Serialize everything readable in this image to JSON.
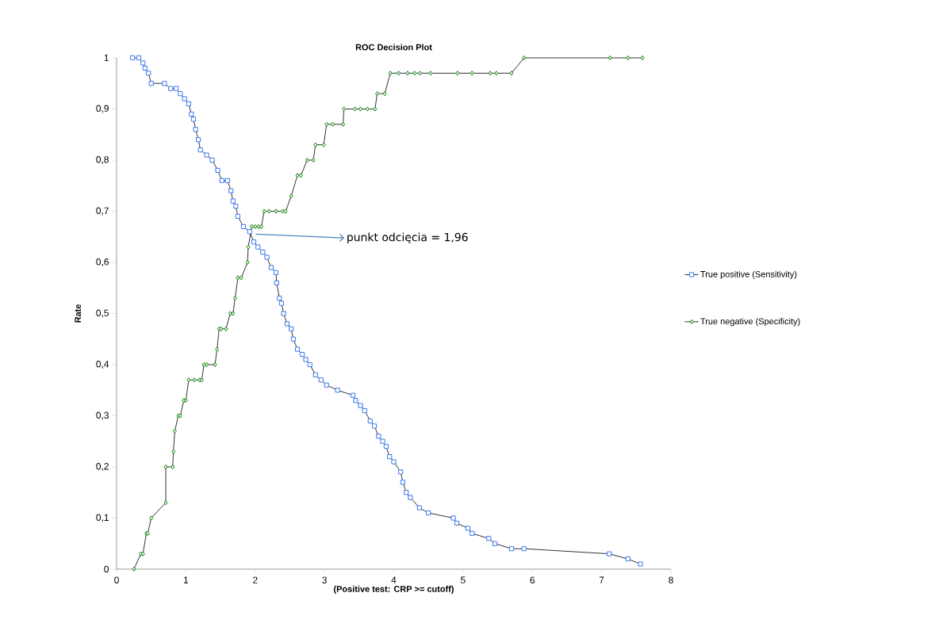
{
  "chart_data": {
    "type": "line",
    "title": "ROC Decision Plot",
    "xlabel": "(Positive test: CRP >= cutoff)",
    "ylabel": "Rate",
    "xlim": [
      0,
      8
    ],
    "ylim": [
      0,
      1
    ],
    "xticks": [
      0,
      1,
      2,
      3,
      4,
      5,
      6,
      7,
      8
    ],
    "yticks": [
      0,
      {
        "value": 0.1,
        "label": "0,1"
      },
      {
        "value": 0.2,
        "label": "0,2"
      },
      {
        "value": 0.3,
        "label": "0,3"
      },
      {
        "value": 0.4,
        "label": "0,4"
      },
      {
        "value": 0.5,
        "label": "0,5"
      },
      {
        "value": 0.6,
        "label": "0,6"
      },
      {
        "value": 0.7,
        "label": "0,7"
      },
      {
        "value": 0.8,
        "label": "0,8"
      },
      {
        "value": 0.9,
        "label": "0,9"
      },
      1
    ],
    "legend": "right",
    "grid": false,
    "annotations": [
      {
        "text": "punkt odcięcia = 1,96",
        "x": 1.96,
        "y": 0.66
      }
    ],
    "series": [
      {
        "name": "True positive (Sensitivity)",
        "color": "#3c78f0",
        "marker": "square",
        "x": [
          0.23,
          0.32,
          0.38,
          0.41,
          0.46,
          0.5,
          0.69,
          0.78,
          0.86,
          0.92,
          0.98,
          1.04,
          1.08,
          1.11,
          1.14,
          1.18,
          1.21,
          1.3,
          1.38,
          1.46,
          1.52,
          1.6,
          1.65,
          1.68,
          1.72,
          1.75,
          1.83,
          1.92,
          1.98,
          2.04,
          2.11,
          2.17,
          2.23,
          2.3,
          2.31,
          2.35,
          2.38,
          2.41,
          2.46,
          2.52,
          2.55,
          2.61,
          2.68,
          2.73,
          2.79,
          2.87,
          2.95,
          3.03,
          3.19,
          3.41,
          3.45,
          3.52,
          3.58,
          3.66,
          3.72,
          3.78,
          3.84,
          3.89,
          3.94,
          4.0,
          4.1,
          4.13,
          4.18,
          4.24,
          4.37,
          4.5,
          4.86,
          4.91,
          5.07,
          5.13,
          5.37,
          5.46,
          5.7,
          5.88,
          7.11,
          7.38,
          7.56
        ],
        "values": [
          1.0,
          1.0,
          0.99,
          0.98,
          0.97,
          0.95,
          0.95,
          0.94,
          0.94,
          0.93,
          0.92,
          0.91,
          0.89,
          0.88,
          0.86,
          0.84,
          0.82,
          0.81,
          0.8,
          0.78,
          0.76,
          0.76,
          0.74,
          0.72,
          0.71,
          0.69,
          0.67,
          0.66,
          0.64,
          0.63,
          0.62,
          0.61,
          0.59,
          0.58,
          0.56,
          0.53,
          0.52,
          0.5,
          0.48,
          0.47,
          0.45,
          0.43,
          0.42,
          0.41,
          0.4,
          0.38,
          0.37,
          0.36,
          0.35,
          0.34,
          0.33,
          0.32,
          0.31,
          0.29,
          0.28,
          0.26,
          0.25,
          0.24,
          0.22,
          0.21,
          0.19,
          0.17,
          0.15,
          0.14,
          0.12,
          0.11,
          0.1,
          0.09,
          0.08,
          0.07,
          0.06,
          0.05,
          0.04,
          0.04,
          0.03,
          0.02,
          0.01
        ]
      },
      {
        "name": "True negative (Specificity)",
        "color": "#008000",
        "marker": "diamond",
        "x": [
          0.25,
          0.35,
          0.38,
          0.43,
          0.45,
          0.5,
          0.71,
          0.71,
          0.81,
          0.82,
          0.84,
          0.89,
          0.92,
          0.97,
          1.0,
          1.04,
          1.12,
          1.2,
          1.23,
          1.26,
          1.3,
          1.42,
          1.45,
          1.48,
          1.51,
          1.58,
          1.64,
          1.68,
          1.71,
          1.75,
          1.8,
          1.89,
          1.9,
          1.95,
          2.0,
          2.05,
          2.09,
          2.13,
          2.2,
          2.3,
          2.4,
          2.44,
          2.52,
          2.61,
          2.66,
          2.75,
          2.84,
          2.87,
          2.99,
          3.03,
          3.12,
          3.27,
          3.28,
          3.44,
          3.52,
          3.62,
          3.73,
          3.76,
          3.87,
          3.95,
          4.07,
          4.2,
          4.3,
          4.38,
          4.53,
          4.92,
          5.13,
          5.39,
          5.48,
          5.7,
          5.88,
          7.12,
          7.38,
          7.59
        ],
        "values": [
          0,
          0.03,
          0.03,
          0.07,
          0.07,
          0.1,
          0.13,
          0.2,
          0.2,
          0.23,
          0.27,
          0.3,
          0.3,
          0.33,
          0.33,
          0.37,
          0.37,
          0.37,
          0.37,
          0.4,
          0.4,
          0.4,
          0.43,
          0.47,
          0.47,
          0.47,
          0.5,
          0.5,
          0.53,
          0.57,
          0.57,
          0.6,
          0.63,
          0.67,
          0.67,
          0.67,
          0.67,
          0.7,
          0.7,
          0.7,
          0.7,
          0.7,
          0.73,
          0.77,
          0.77,
          0.8,
          0.8,
          0.83,
          0.83,
          0.87,
          0.87,
          0.87,
          0.9,
          0.9,
          0.9,
          0.9,
          0.9,
          0.93,
          0.93,
          0.97,
          0.97,
          0.97,
          0.97,
          0.97,
          0.97,
          0.97,
          0.97,
          0.97,
          0.97,
          0.97,
          1,
          1,
          1,
          1
        ]
      }
    ]
  }
}
